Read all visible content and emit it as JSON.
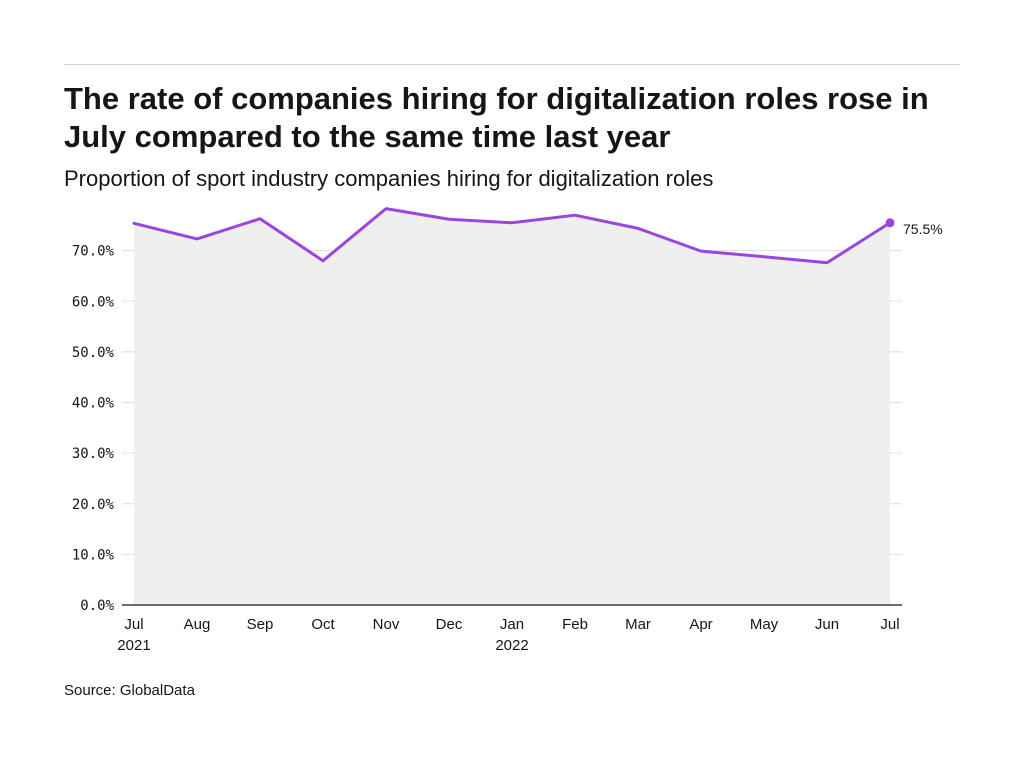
{
  "title": "The rate of companies hiring for digitalization roles rose in July compared to the same time last year",
  "subtitle": "Proportion of sport industry companies hiring for digitalization roles",
  "source": "Source: GlobalData",
  "colors": {
    "line": "#9b45e0",
    "area": "#efefef",
    "grid": "#dedede",
    "axis": "#161616"
  },
  "chart_data": {
    "type": "area",
    "x": [
      "Jul 2021",
      "Aug 2021",
      "Sep 2021",
      "Oct 2021",
      "Nov 2021",
      "Dec 2021",
      "Jan 2022",
      "Feb 2022",
      "Mar 2022",
      "Apr 2022",
      "May 2022",
      "Jun 2022",
      "Jul 2022"
    ],
    "x_tick_labels": [
      {
        "month": "Jul",
        "year": "2021"
      },
      {
        "month": "Aug",
        "year": ""
      },
      {
        "month": "Sep",
        "year": ""
      },
      {
        "month": "Oct",
        "year": ""
      },
      {
        "month": "Nov",
        "year": ""
      },
      {
        "month": "Dec",
        "year": ""
      },
      {
        "month": "Jan",
        "year": "2022"
      },
      {
        "month": "Feb",
        "year": ""
      },
      {
        "month": "Mar",
        "year": ""
      },
      {
        "month": "Apr",
        "year": ""
      },
      {
        "month": "May",
        "year": ""
      },
      {
        "month": "Jun",
        "year": ""
      },
      {
        "month": "Jul",
        "year": ""
      }
    ],
    "series": [
      {
        "values": [
          75.4,
          72.3,
          76.3,
          68.0,
          78.3,
          76.2,
          75.5,
          77.0,
          74.4,
          69.9,
          68.8,
          67.6,
          75.5
        ]
      }
    ],
    "y_ticks": [
      0,
      10,
      20,
      30,
      40,
      50,
      60,
      70
    ],
    "y_tick_labels": [
      "0.0%",
      "10.0%",
      "20.0%",
      "30.0%",
      "40.0%",
      "50.0%",
      "60.0%",
      "70.0%"
    ],
    "ylim": [
      0,
      80
    ],
    "end_label": "75.5%",
    "grid": true,
    "xlabel": "",
    "ylabel": ""
  }
}
